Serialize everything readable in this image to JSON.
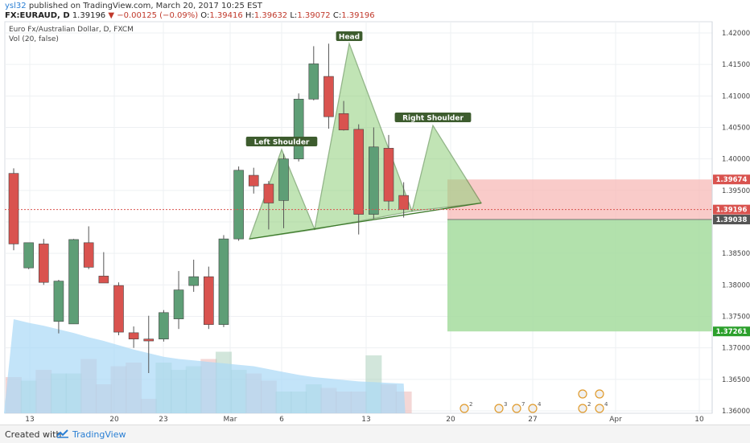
{
  "header": {
    "user": "ysl32",
    "published": "published on TradingView.com, March 20, 2017 10:25 EST",
    "symbol": "FX:EURAUD, D",
    "last": "1.39196",
    "change": "−0.00125 (−0.09%)",
    "o_label": "O:",
    "o_value": "1.39416",
    "h_label": "H:",
    "h_value": "1.39632",
    "l_label": "L:",
    "l_value": "1.39072",
    "c_label": "C:",
    "c_value": "1.39196"
  },
  "legend": {
    "instrument": "Euro Fx/Australian Dollar, D, FXCM",
    "volume": "Vol (20, false)"
  },
  "footer": {
    "created": "Created with",
    "brand": "TradingView"
  },
  "colors": {
    "up": "#5e9e76",
    "down": "#d9534f",
    "pattern_fill": "#8fcf7a",
    "pattern_stroke": "#3c7a2a",
    "stop_zone": "#f7b9b7",
    "target_zone": "#a5dc9d",
    "volume_ma": "#a9d9f7",
    "grid": "#eef0f3"
  },
  "chart_data": {
    "type": "candlestick",
    "y_range": [
      1.36,
      1.4225
    ],
    "y_ticks": [
      "1.42000",
      "1.41500",
      "1.41000",
      "1.40500",
      "1.40000",
      "1.39500",
      "1.39000",
      "1.38500",
      "1.38000",
      "1.37500",
      "1.37000",
      "1.36500",
      "1.36000"
    ],
    "x_ticks": [
      "13",
      "20",
      "23",
      "Mar",
      "6",
      "13",
      "20",
      "27",
      "Apr",
      "10"
    ],
    "price_labels": [
      {
        "value": 1.39674,
        "text": "1.39674",
        "color": "#d9534f"
      },
      {
        "value": 1.39196,
        "text": "1.39196",
        "color": "#d9534f"
      },
      {
        "value": 1.39038,
        "text": "1.39038",
        "color": "#555555"
      },
      {
        "value": 1.37261,
        "text": "1.37261",
        "color": "#2ca02c"
      }
    ],
    "candles": [
      {
        "o": 1.3977,
        "h": 1.3985,
        "l": 1.3855,
        "c": 1.3865
      },
      {
        "o": 1.3827,
        "h": 1.3865,
        "l": 1.3825,
        "c": 1.3867
      },
      {
        "o": 1.3865,
        "h": 1.3873,
        "l": 1.38,
        "c": 1.3804
      },
      {
        "o": 1.3742,
        "h": 1.3808,
        "l": 1.3723,
        "c": 1.3806
      },
      {
        "o": 1.3738,
        "h": 1.3873,
        "l": 1.3738,
        "c": 1.3872
      },
      {
        "o": 1.3867,
        "h": 1.3893,
        "l": 1.3825,
        "c": 1.3828
      },
      {
        "o": 1.3814,
        "h": 1.3852,
        "l": 1.3808,
        "c": 1.3803
      },
      {
        "o": 1.3799,
        "h": 1.3804,
        "l": 1.372,
        "c": 1.3725
      },
      {
        "o": 1.3724,
        "h": 1.3734,
        "l": 1.37,
        "c": 1.3714
      },
      {
        "o": 1.3714,
        "h": 1.3751,
        "l": 1.366,
        "c": 1.3711
      },
      {
        "o": 1.3714,
        "h": 1.376,
        "l": 1.371,
        "c": 1.3756
      },
      {
        "o": 1.3746,
        "h": 1.3822,
        "l": 1.373,
        "c": 1.3792
      },
      {
        "o": 1.3799,
        "h": 1.384,
        "l": 1.3789,
        "c": 1.3813
      },
      {
        "o": 1.3813,
        "h": 1.3829,
        "l": 1.373,
        "c": 1.3737
      },
      {
        "o": 1.3737,
        "h": 1.3879,
        "l": 1.3733,
        "c": 1.3873
      },
      {
        "o": 1.3873,
        "h": 1.3988,
        "l": 1.387,
        "c": 1.3982
      },
      {
        "o": 1.3974,
        "h": 1.3986,
        "l": 1.3945,
        "c": 1.3957
      },
      {
        "o": 1.396,
        "h": 1.3965,
        "l": 1.3888,
        "c": 1.393
      },
      {
        "o": 1.3934,
        "h": 1.4008,
        "l": 1.389,
        "c": 1.4
      },
      {
        "o": 1.4,
        "h": 1.4104,
        "l": 1.3996,
        "c": 1.4095
      },
      {
        "o": 1.4095,
        "h": 1.4179,
        "l": 1.4093,
        "c": 1.4151
      },
      {
        "o": 1.4131,
        "h": 1.4183,
        "l": 1.4048,
        "c": 1.4067
      },
      {
        "o": 1.4072,
        "h": 1.4092,
        "l": 1.4045,
        "c": 1.4046
      },
      {
        "o": 1.4047,
        "h": 1.4055,
        "l": 1.388,
        "c": 1.3912
      },
      {
        "o": 1.3912,
        "h": 1.405,
        "l": 1.3905,
        "c": 1.4019
      },
      {
        "o": 1.4017,
        "h": 1.4038,
        "l": 1.3918,
        "c": 1.3933
      },
      {
        "o": 1.3942,
        "h": 1.3963,
        "l": 1.3907,
        "c": 1.392
      }
    ],
    "volume": [
      5,
      4.5,
      6,
      5.5,
      5.5,
      7.5,
      4,
      6.5,
      7,
      2,
      7,
      6,
      6.5,
      7.5,
      8.5,
      6,
      5.5,
      4.5,
      3,
      3,
      4,
      3.5,
      3,
      3,
      8,
      4,
      3
    ],
    "volume_ma": [
      13,
      12.5,
      12.1,
      11.6,
      11.1,
      10.5,
      10,
      9.4,
      8.8,
      8.3,
      7.8,
      7.5,
      7.3,
      7.1,
      6.9,
      6.7,
      6.5,
      6.1,
      5.7,
      5.3,
      5,
      4.8,
      4.6,
      4.4,
      4.3,
      4.2,
      4.1
    ],
    "pattern": {
      "points": [
        1.3873,
        1.4015,
        1.3888,
        1.4183,
        1.3917,
        1.4053,
        1.393
      ],
      "labels": [
        "Left Shoulder",
        "Head",
        "Right Shoulder"
      ]
    },
    "position": {
      "entry": 1.39038,
      "stop": 1.39674,
      "target": 1.37261
    },
    "last_price": 1.39196,
    "events": [
      "2",
      "3",
      "7",
      "4",
      "2",
      "4"
    ]
  }
}
